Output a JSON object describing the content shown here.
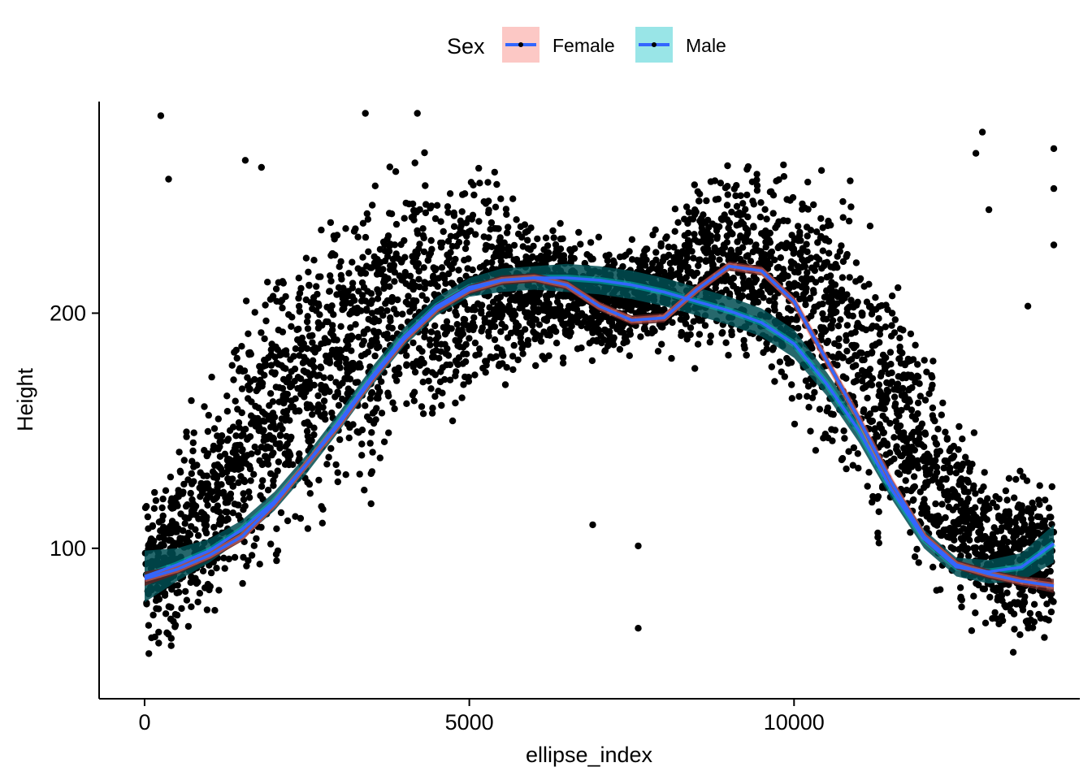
{
  "chart_data": {
    "type": "scatter",
    "title": "",
    "xlabel": "ellipse_index",
    "ylabel": "Height",
    "xlim": [
      -700,
      14400
    ],
    "ylim": [
      36,
      290
    ],
    "x_ticks": [
      0,
      5000,
      10000
    ],
    "x_tick_labels": [
      "0",
      "5000",
      "10000"
    ],
    "y_ticks": [
      100,
      200
    ],
    "y_tick_labels": [
      "100",
      "200"
    ],
    "grid": false,
    "legend": {
      "title": "Sex",
      "position": "top",
      "entries": [
        "Female",
        "Male"
      ]
    },
    "colors": {
      "points": "#000000",
      "Female_fill": "#F8766D",
      "Male_fill": "#00BFC4",
      "smooth_line": "#3366FF",
      "ribbon_dark": "#004D52"
    },
    "scatter_envelope": {
      "description": "dense cloud of black points spanning the full x range",
      "x": [
        0,
        1000,
        2000,
        3000,
        4000,
        5000,
        6000,
        7000,
        8000,
        9000,
        10000,
        11000,
        12000,
        13000,
        14000
      ],
      "y_low": [
        50,
        55,
        80,
        100,
        125,
        145,
        170,
        175,
        175,
        170,
        140,
        100,
        75,
        55,
        50
      ],
      "y_high": [
        130,
        180,
        240,
        265,
        280,
        278,
        250,
        235,
        245,
        278,
        280,
        265,
        200,
        140,
        140
      ]
    },
    "outliers": [
      {
        "x": 250,
        "y": 284
      },
      {
        "x": 370,
        "y": 257
      },
      {
        "x": 1550,
        "y": 265
      },
      {
        "x": 1800,
        "y": 262
      },
      {
        "x": 12800,
        "y": 268
      },
      {
        "x": 12900,
        "y": 277
      },
      {
        "x": 13000,
        "y": 244
      },
      {
        "x": 13600,
        "y": 203
      },
      {
        "x": 14000,
        "y": 270
      },
      {
        "x": 14000,
        "y": 253
      },
      {
        "x": 14000,
        "y": 229
      },
      {
        "x": 6900,
        "y": 110
      },
      {
        "x": 7600,
        "y": 101
      },
      {
        "x": 7600,
        "y": 66
      },
      {
        "x": 3400,
        "y": 285
      },
      {
        "x": 4200,
        "y": 285
      }
    ],
    "series": [
      {
        "name": "Female",
        "x": [
          0,
          500,
          1000,
          1500,
          2000,
          2500,
          3000,
          3500,
          4000,
          4500,
          5000,
          5500,
          6000,
          6500,
          7000,
          7500,
          8000,
          8500,
          9000,
          9500,
          10000,
          10500,
          11000,
          11500,
          12000,
          12500,
          13000,
          13500,
          14000
        ],
        "y": [
          87,
          91,
          97,
          105,
          119,
          136,
          153,
          172,
          189,
          202,
          210,
          214,
          215,
          212,
          203,
          197,
          198,
          210,
          220,
          218,
          205,
          180,
          155,
          128,
          105,
          93,
          89,
          86,
          84
        ],
        "ribbon_halfwidth": [
          3,
          2,
          2,
          2,
          2,
          2,
          2,
          2,
          2,
          2,
          2,
          2,
          2,
          2,
          2,
          2,
          2,
          2,
          2,
          2,
          2,
          2,
          2,
          2,
          2,
          2,
          2,
          2,
          3
        ]
      },
      {
        "name": "Male",
        "x": [
          0,
          500,
          1000,
          1500,
          2000,
          2500,
          3000,
          3500,
          4000,
          4500,
          5000,
          5500,
          6000,
          6500,
          7000,
          7500,
          8000,
          8500,
          9000,
          9500,
          10000,
          10500,
          11000,
          11500,
          12000,
          12500,
          13000,
          13500,
          14000
        ],
        "y": [
          88,
          93,
          99,
          108,
          120,
          136,
          154,
          173,
          190,
          203,
          211,
          214,
          215,
          215,
          214,
          212,
          209,
          205,
          201,
          196,
          187,
          170,
          150,
          125,
          104,
          92,
          90,
          92,
          102
        ],
        "ribbon_halfwidth": [
          11,
          7,
          5,
          4,
          4,
          4,
          4,
          4,
          4,
          4,
          4,
          5,
          5,
          6,
          6,
          6,
          6,
          6,
          6,
          6,
          6,
          5,
          5,
          4,
          4,
          4,
          5,
          6,
          8
        ]
      }
    ]
  }
}
